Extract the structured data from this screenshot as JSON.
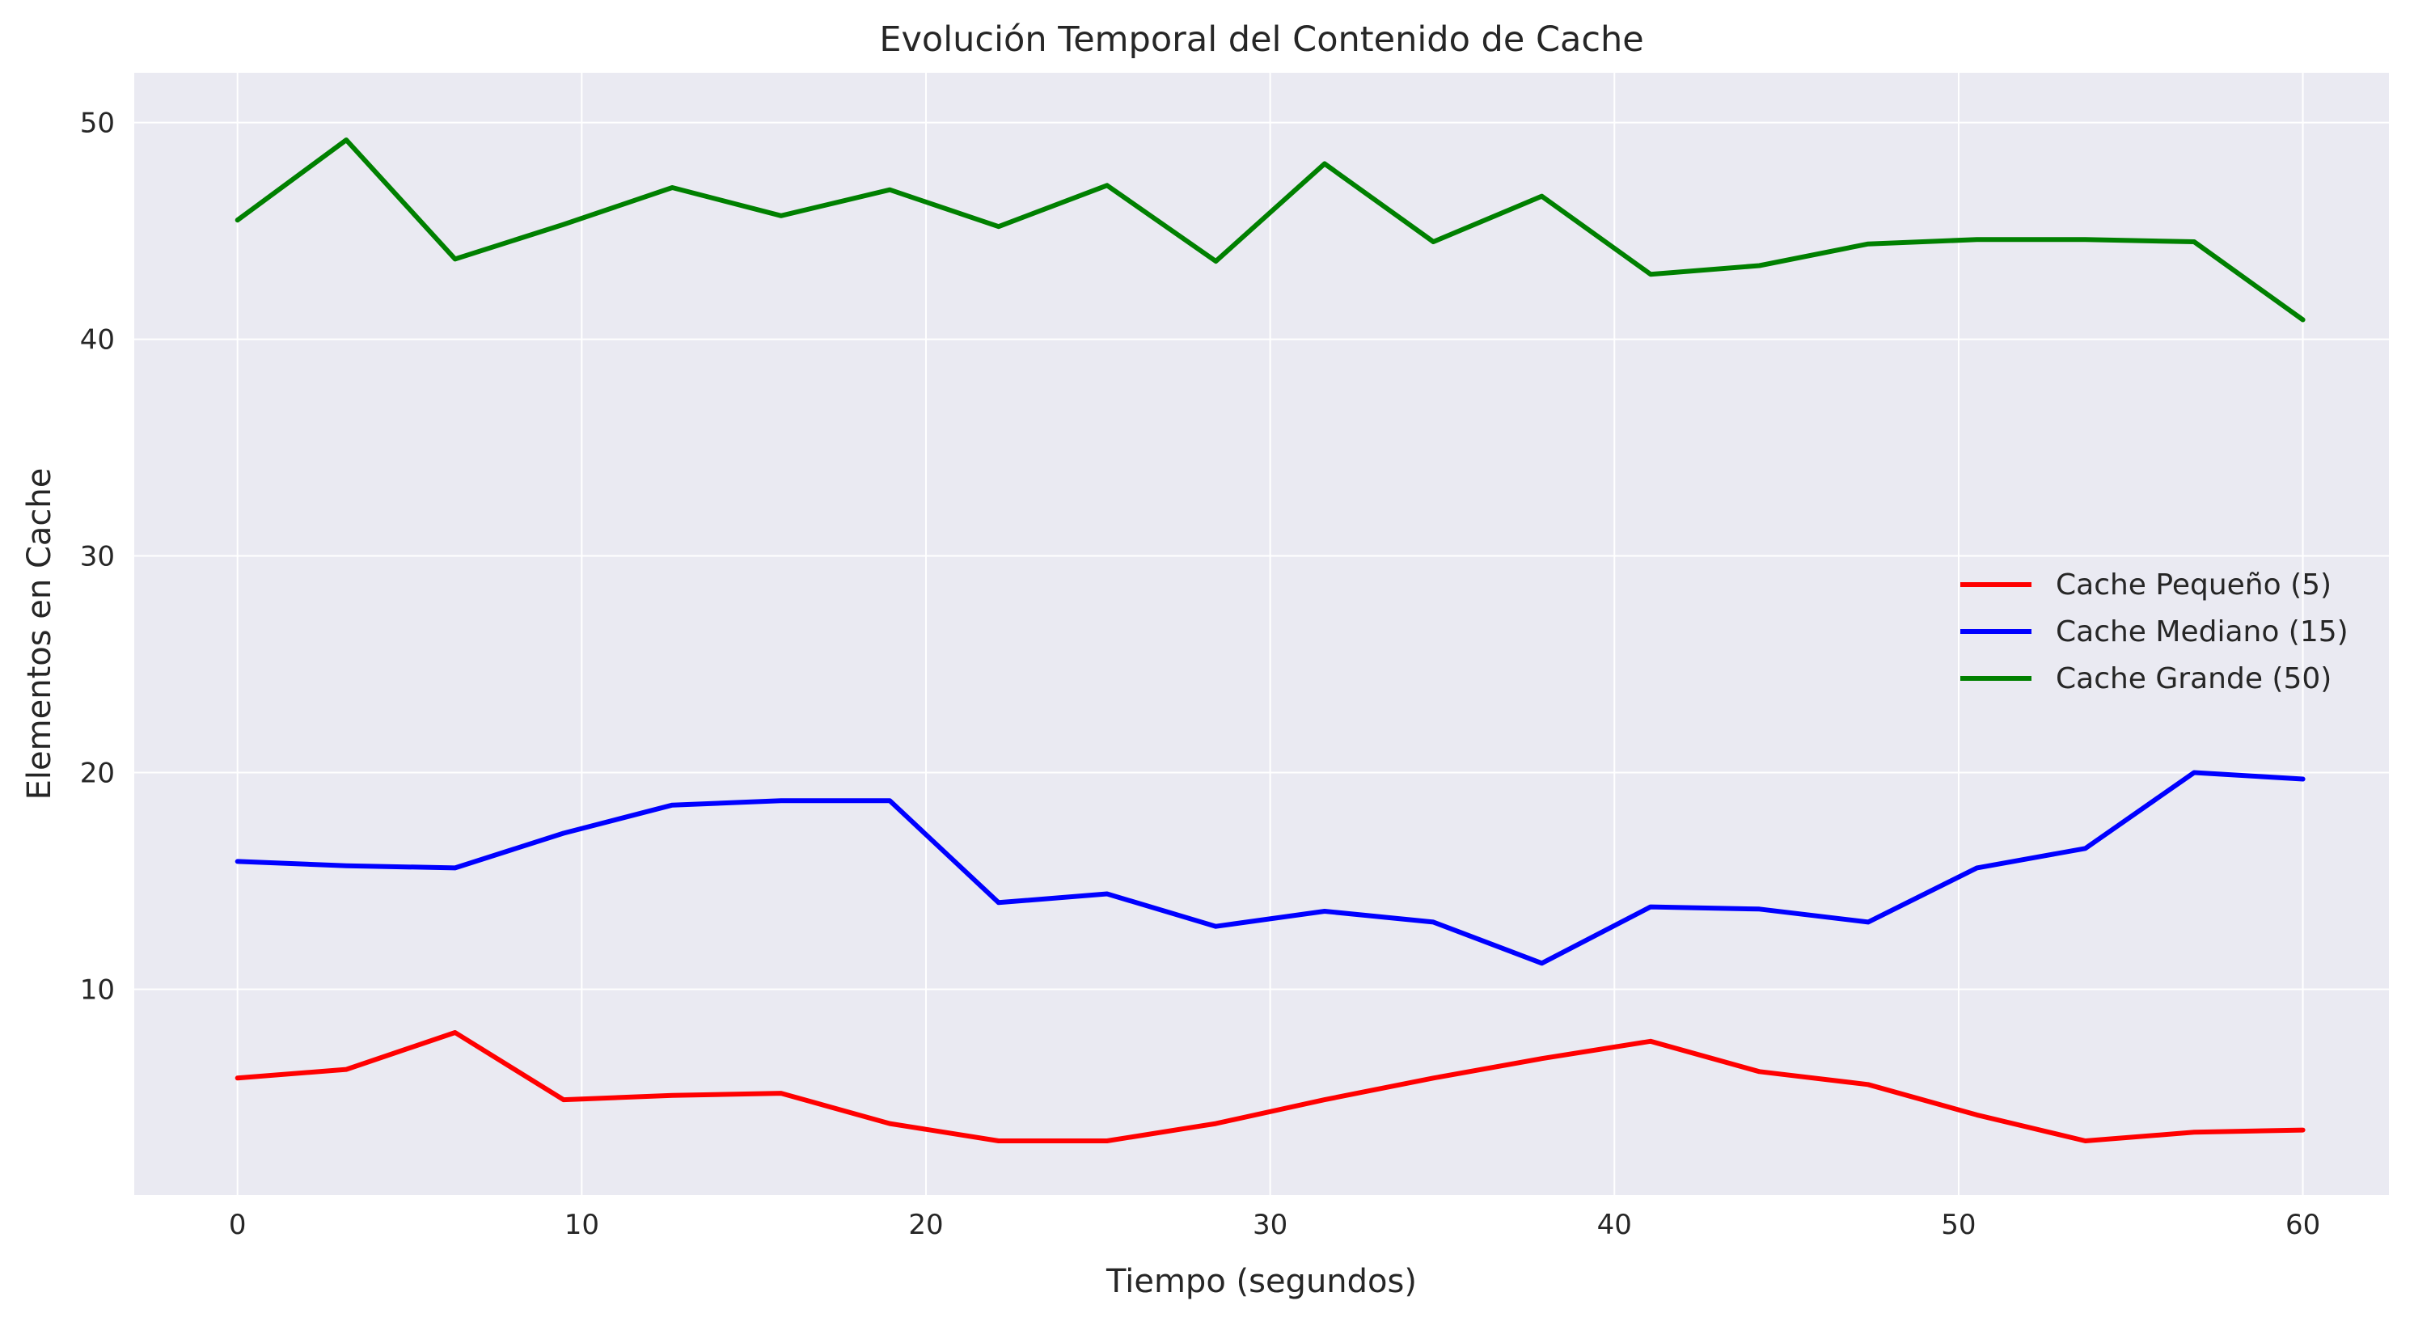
{
  "chart_data": {
    "type": "line",
    "title": "Evolución Temporal del Contenido de Cache",
    "xlabel": "Tiempo (segundos)",
    "ylabel": "Elementos en Cache",
    "xlim": [
      -3,
      62.5
    ],
    "ylim": [
      0.5,
      52.3
    ],
    "xticks": [
      0,
      10,
      20,
      30,
      40,
      50,
      60
    ],
    "yticks": [
      10,
      20,
      30,
      40,
      50
    ],
    "grid": true,
    "legend_position": "right",
    "x": [
      0,
      3.16,
      6.32,
      9.47,
      12.63,
      15.79,
      18.95,
      22.11,
      25.26,
      28.42,
      31.58,
      34.74,
      37.89,
      41.05,
      44.21,
      47.37,
      50.53,
      53.68,
      56.84,
      60
    ],
    "series": [
      {
        "name": "Cache Pequeño (5)",
        "color": "#ff0000",
        "values": [
          5.9,
          6.3,
          8.0,
          4.9,
          5.1,
          5.2,
          3.8,
          3.0,
          3.0,
          3.8,
          4.9,
          5.9,
          6.8,
          7.6,
          6.2,
          5.6,
          4.2,
          3.0,
          3.4,
          3.5
        ]
      },
      {
        "name": "Cache Mediano (15)",
        "color": "#0000ff",
        "values": [
          15.9,
          15.7,
          15.6,
          17.2,
          18.5,
          18.7,
          18.7,
          14.0,
          14.4,
          12.9,
          13.6,
          13.1,
          11.2,
          13.8,
          13.7,
          13.1,
          15.6,
          16.5,
          20.0,
          19.7
        ]
      },
      {
        "name": "Cache Grande (50)",
        "color": "#008000",
        "values": [
          45.5,
          49.2,
          43.7,
          45.3,
          47.0,
          45.7,
          46.9,
          45.2,
          47.1,
          43.6,
          48.1,
          44.5,
          46.6,
          43.0,
          43.4,
          44.4,
          44.6,
          44.6,
          44.5,
          40.9
        ]
      }
    ]
  }
}
